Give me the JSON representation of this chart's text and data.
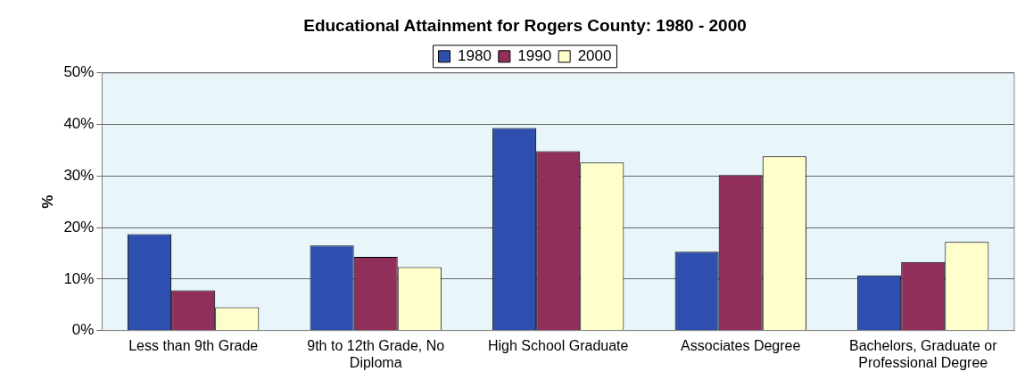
{
  "chart_data": {
    "type": "bar",
    "title": "Educational Attainment for Rogers County: 1980 - 2000",
    "ylabel": "%",
    "categories": [
      "Less than 9th Grade",
      "9th to 12th Grade, No Diploma",
      "High School Graduate",
      "Associates Degree",
      "Bachelors, Graduate or Professional Degree"
    ],
    "series": [
      {
        "name": "1980",
        "color": "#2e4fb0",
        "values": [
          18.7,
          16.5,
          39.3,
          15.3,
          10.7
        ]
      },
      {
        "name": "1990",
        "color": "#8f2f5a",
        "values": [
          7.8,
          14.3,
          34.8,
          30.2,
          13.3
        ]
      },
      {
        "name": "2000",
        "color": "#ffffcc",
        "values": [
          4.5,
          12.3,
          32.6,
          33.8,
          17.2
        ]
      }
    ],
    "ylim": [
      0,
      50
    ],
    "yticks": [
      {
        "value": 0,
        "label": "0%"
      },
      {
        "value": 10,
        "label": "10%"
      },
      {
        "value": 20,
        "label": "20%"
      },
      {
        "value": 30,
        "label": "30%"
      },
      {
        "value": 40,
        "label": "40%"
      },
      {
        "value": 50,
        "label": "50%"
      }
    ],
    "grid": "y",
    "legend": "top"
  }
}
